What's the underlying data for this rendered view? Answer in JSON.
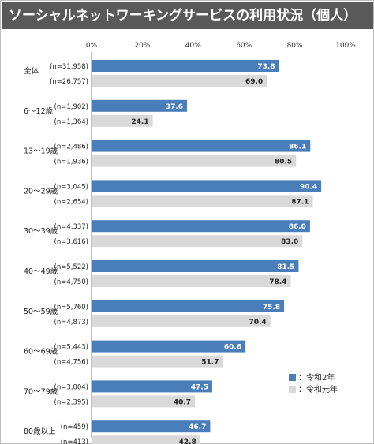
{
  "title": "ソーシャルネットワーキングサービスの利用状況（個人）",
  "colors": {
    "series_2020": "#4a7ebb",
    "series_2019": "#d9d9d9",
    "title_bg": "#595959"
  },
  "chart_data": {
    "type": "bar",
    "orientation": "horizontal",
    "xlim": [
      0,
      100
    ],
    "x_ticks": [
      "0%",
      "20%",
      "40%",
      "60%",
      "80%",
      "100%"
    ],
    "grid": false,
    "legend_position": "bottom-right",
    "series": [
      {
        "name": "：令和2年",
        "color": "#4a7ebb"
      },
      {
        "name": "：令和元年",
        "color": "#d9d9d9"
      }
    ],
    "categories": [
      {
        "label": "全体",
        "n": [
          "(n=31,958)",
          "(n=26,757)"
        ],
        "values": [
          73.8,
          69.0
        ],
        "labels": [
          "73.8",
          "69.0"
        ]
      },
      {
        "label": "6～12歳",
        "n": [
          "(n=1,902)",
          "(n=1,364)"
        ],
        "values": [
          37.6,
          24.1
        ],
        "labels": [
          "37.6",
          "24.1"
        ]
      },
      {
        "label": "13～19歳",
        "n": [
          "(n=2,486)",
          "(n=1,936)"
        ],
        "values": [
          86.1,
          80.5
        ],
        "labels": [
          "86.1",
          "80.5"
        ]
      },
      {
        "label": "20～29歳",
        "n": [
          "(n=3,045)",
          "(n=2,654)"
        ],
        "values": [
          90.4,
          87.1
        ],
        "labels": [
          "90.4",
          "87.1"
        ]
      },
      {
        "label": "30～39歳",
        "n": [
          "(n=4,337)",
          "(n=3,616)"
        ],
        "values": [
          86.0,
          83.0
        ],
        "labels": [
          "86.0",
          "83.0"
        ]
      },
      {
        "label": "40～49歳",
        "n": [
          "(n=5,522)",
          "(n=4,750)"
        ],
        "values": [
          81.5,
          78.4
        ],
        "labels": [
          "81.5",
          "78.4"
        ]
      },
      {
        "label": "50～59歳",
        "n": [
          "(n=5,760)",
          "(n=4,873)"
        ],
        "values": [
          75.8,
          70.4
        ],
        "labels": [
          "75.8",
          "70.4"
        ]
      },
      {
        "label": "60～69歳",
        "n": [
          "(n=5,443)",
          "(n=4,756)"
        ],
        "values": [
          60.6,
          51.7
        ],
        "labels": [
          "60.6",
          "51.7"
        ]
      },
      {
        "label": "70～79歳",
        "n": [
          "(n=3,004)",
          "(n=2,395)"
        ],
        "values": [
          47.5,
          40.7
        ],
        "labels": [
          "47.5",
          "40.7"
        ]
      },
      {
        "label": "80歳以上",
        "n": [
          "(n=459)",
          "(n=413)"
        ],
        "values": [
          46.7,
          42.8
        ],
        "labels": [
          "46.7",
          "42.8"
        ]
      }
    ]
  }
}
